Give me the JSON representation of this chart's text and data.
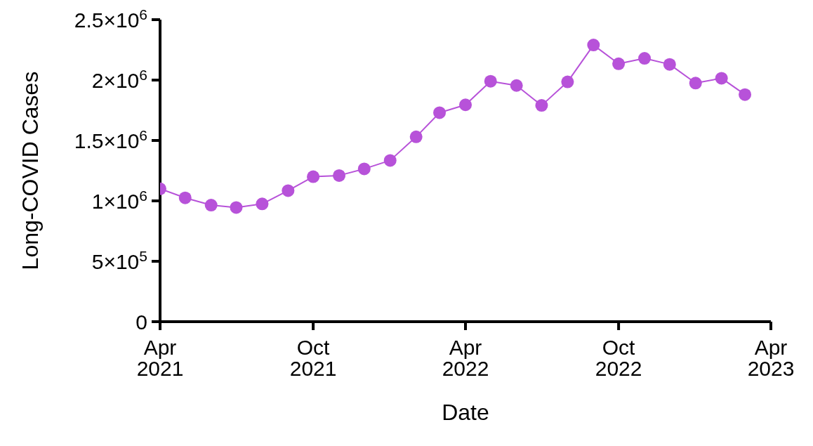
{
  "chart_data": {
    "type": "line",
    "xlabel": "Date",
    "ylabel": "Long-COVID Cases",
    "x": [
      "2021-04",
      "2021-05",
      "2021-06",
      "2021-07",
      "2021-08",
      "2021-09",
      "2021-10",
      "2021-11",
      "2021-12",
      "2022-01",
      "2022-02",
      "2022-03",
      "2022-04",
      "2022-05",
      "2022-06",
      "2022-07",
      "2022-08",
      "2022-09",
      "2022-10",
      "2022-11",
      "2022-12",
      "2023-01",
      "2023-02",
      "2023-03"
    ],
    "series": [
      {
        "color": "#b752d9",
        "values": [
          1100000,
          1025000,
          965000,
          945000,
          975000,
          1085000,
          1200000,
          1210000,
          1265000,
          1335000,
          1530000,
          1730000,
          1795000,
          1990000,
          1955000,
          1790000,
          1985000,
          2290000,
          2135000,
          2180000,
          2130000,
          1975000,
          2015000,
          1880000
        ]
      }
    ],
    "xlim": [
      "2021-04",
      "2023-04"
    ],
    "xticks": [
      {
        "value": "2021-04",
        "label": "Apr 2021"
      },
      {
        "value": "2021-10",
        "label": "Oct 2021"
      },
      {
        "value": "2022-04",
        "label": "Apr 2022"
      },
      {
        "value": "2022-10",
        "label": "Oct 2022"
      },
      {
        "value": "2023-04",
        "label": "Apr 2023"
      }
    ],
    "ylim": [
      0,
      2500000
    ],
    "yticks": [
      0,
      {
        "value": 500000,
        "label": "5×10$^{5}$"
      },
      {
        "value": 1000000,
        "label": "1×10$^{6}$"
      },
      {
        "value": 1500000,
        "label": "1.5×10$^{6}$"
      },
      {
        "value": 2000000,
        "label": "2×10$^{6}$"
      },
      {
        "value": 2500000,
        "label": "2.5×10$^{6}$"
      }
    ],
    "grid": false,
    "legend": false,
    "marker": "circle",
    "line_style": "solid"
  }
}
